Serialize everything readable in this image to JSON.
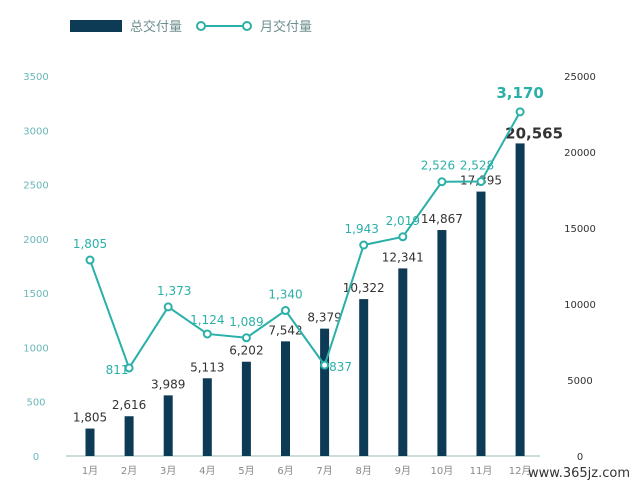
{
  "legend": {
    "bar_label": "总交付量",
    "line_label": "月交付量"
  },
  "watermark": "www.365jz.com",
  "colors": {
    "bar": "#0d3b55",
    "line": "#2ab0a8",
    "axis_left": "#6ab7b7",
    "axis_right": "#333333"
  },
  "chart_data": {
    "type": "bar",
    "categories": [
      "1月",
      "2月",
      "3月",
      "4月",
      "5月",
      "6月",
      "7月",
      "8月",
      "9月",
      "10月",
      "11月",
      "12月"
    ],
    "series": [
      {
        "name": "总交付量",
        "type": "bar",
        "axis": "right",
        "values": [
          1805,
          2616,
          3989,
          5113,
          6202,
          7542,
          8379,
          10322,
          12341,
          14867,
          17395,
          20565
        ],
        "labels": [
          "1,805",
          "2,616",
          "3,989",
          "5,113",
          "6,202",
          "7,542",
          "8,379",
          "10,322",
          "12,341",
          "14,867",
          "17,395",
          "20,565"
        ]
      },
      {
        "name": "月交付量",
        "type": "line",
        "axis": "left",
        "values": [
          1805,
          811,
          1373,
          1124,
          1089,
          1340,
          837,
          1943,
          2019,
          2526,
          2528,
          3170
        ],
        "labels": [
          "1,805",
          "811",
          "1,373",
          "1,124",
          "1,089",
          "1,340",
          "837",
          "1,943",
          "2,019",
          "2,526",
          "2,528",
          "3,170"
        ]
      }
    ],
    "y_left": {
      "ylim": [
        0,
        3500
      ],
      "ticks": [
        "0",
        "500",
        "1000",
        "1500",
        "2000",
        "2500",
        "3000",
        "3500"
      ]
    },
    "y_right": {
      "ylim": [
        0,
        25000
      ],
      "ticks": [
        "0",
        "5000",
        "10000",
        "15000",
        "20000",
        "25000"
      ]
    },
    "grid": false,
    "legend_position": "top-left"
  }
}
